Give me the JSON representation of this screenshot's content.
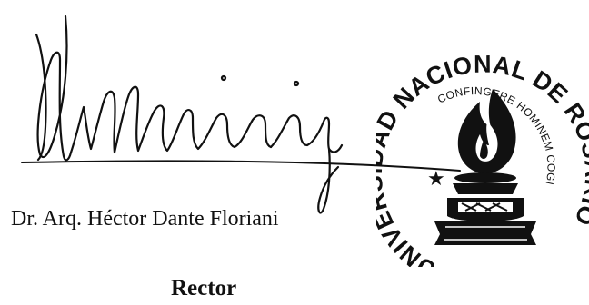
{
  "signature_block": {
    "name": "Dr. Arq. Héctor Dante Floriani",
    "title": "Rector"
  },
  "seal": {
    "outer_text": "UNIVERSIDAD NACIONAL DE ROSARIO",
    "inner_text": "CONFINGERE HOMINEM COGITANTEM",
    "star": "★"
  },
  "colors": {
    "ink": "#111111",
    "background": "#ffffff"
  }
}
